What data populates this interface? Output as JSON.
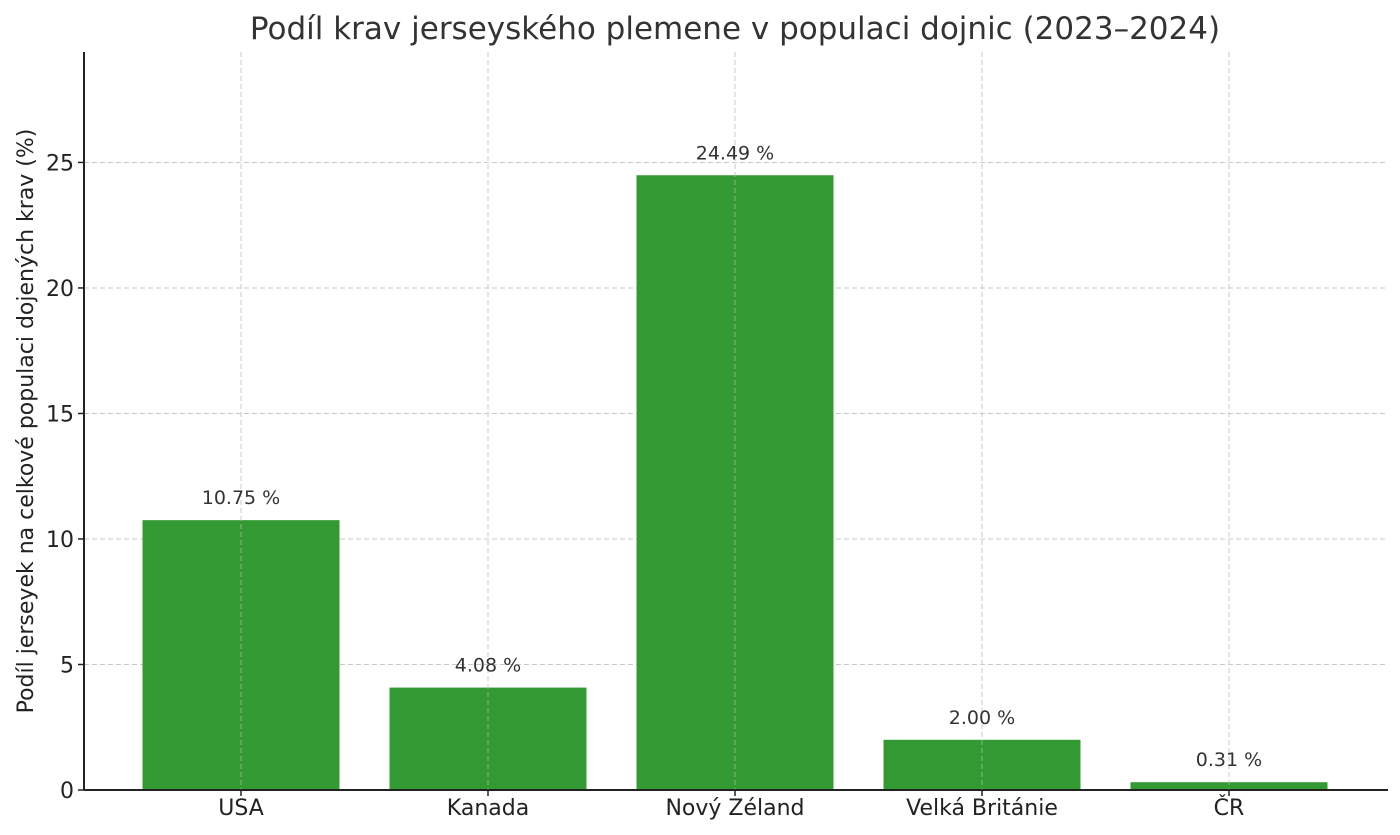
{
  "chart_data": {
    "type": "bar",
    "title": "Podíl krav jerseyského plemene v populaci dojnic (2023–2024)",
    "xlabel": "",
    "ylabel": "Podíl jerseyek na celkové populaci dojených krav (%)",
    "categories": [
      "USA",
      "Kanada",
      "Nový Zéland",
      "Velká Británie",
      "ČR"
    ],
    "values": [
      10.75,
      4.08,
      24.49,
      2.0,
      0.31
    ],
    "data_labels": [
      "10.75 %",
      "4.08 %",
      "24.49 %",
      "2.00 %",
      "0.31 %"
    ],
    "ylim": [
      0,
      29.4
    ],
    "yticks": [
      0,
      5,
      10,
      15,
      20,
      25
    ],
    "ytick_labels": [
      "0",
      "5",
      "10",
      "15",
      "20",
      "25"
    ],
    "grid": true,
    "legend": "none",
    "bar_color": "#339933"
  }
}
